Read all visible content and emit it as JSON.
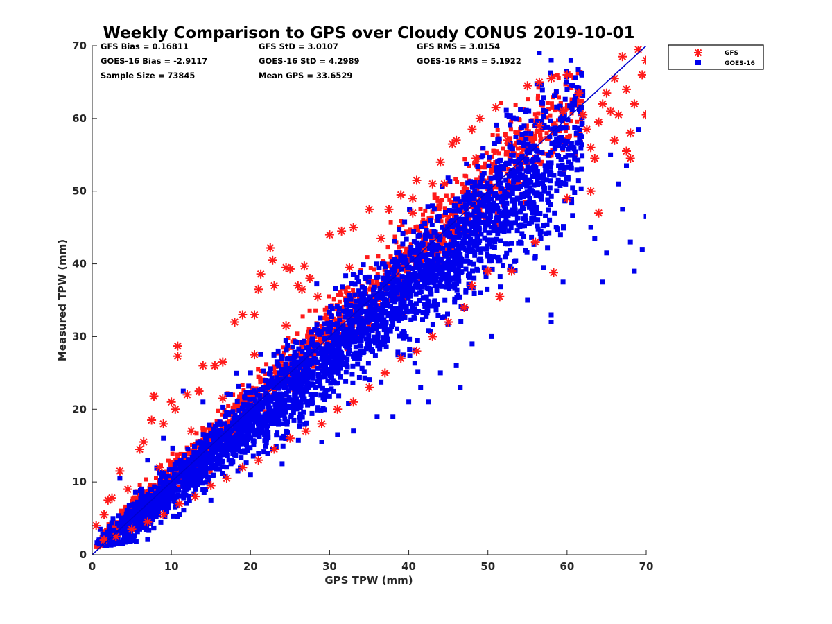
{
  "chart_data": {
    "type": "scatter",
    "title": "Weekly Comparison to GPS over Cloudy CONUS 2019-10-01",
    "xlabel": "GPS TPW (mm)",
    "ylabel": "Measured TPW (mm)",
    "xlim": [
      0,
      70
    ],
    "ylim": [
      0,
      70
    ],
    "xticks": [
      "0",
      "10",
      "20",
      "30",
      "40",
      "50",
      "60",
      "70"
    ],
    "yticks": [
      "0",
      "10",
      "20",
      "30",
      "40",
      "50",
      "60",
      "70"
    ],
    "grid": false,
    "legend_position": "outside top-right",
    "reference_line": {
      "x": [
        0,
        70
      ],
      "y": [
        0,
        70
      ],
      "color": "#0000cc"
    },
    "stats": [
      "GFS Bias = 0.16811",
      "GFS StD = 3.0107",
      "GFS RMS = 3.0154",
      "GOES-16 Bias = -2.9117",
      "GOES-16 StD = 4.2989",
      "GOES-16 RMS = 5.1922",
      "Sample Size = 73845",
      "Mean GPS = 33.6529"
    ],
    "series": [
      {
        "name": "GFS",
        "marker": "asterisk",
        "color": "#ff1a1a",
        "points": [
          [
            0.5,
            4.0
          ],
          [
            1.5,
            5.5
          ],
          [
            2.0,
            7.5
          ],
          [
            2.5,
            7.8
          ],
          [
            3.5,
            11.5
          ],
          [
            4.5,
            9.0
          ],
          [
            6.0,
            14.5
          ],
          [
            6.5,
            15.5
          ],
          [
            7.5,
            18.5
          ],
          [
            7.8,
            21.8
          ],
          [
            9.0,
            18.0
          ],
          [
            10.0,
            21.0
          ],
          [
            10.5,
            20.0
          ],
          [
            10.8,
            28.7
          ],
          [
            10.8,
            27.3
          ],
          [
            12.0,
            22.0
          ],
          [
            13.5,
            22.5
          ],
          [
            14.0,
            26.0
          ],
          [
            15.5,
            26.0
          ],
          [
            16.5,
            26.5
          ],
          [
            18.0,
            32.0
          ],
          [
            19.0,
            33.0
          ],
          [
            20.5,
            33.0
          ],
          [
            21.0,
            36.5
          ],
          [
            21.3,
            38.6
          ],
          [
            22.5,
            42.2
          ],
          [
            22.8,
            40.5
          ],
          [
            23.0,
            37.0
          ],
          [
            24.5,
            39.5
          ],
          [
            25.0,
            39.3
          ],
          [
            26.0,
            37.0
          ],
          [
            26.5,
            36.5
          ],
          [
            26.8,
            39.7
          ],
          [
            27.5,
            38.0
          ],
          [
            30.0,
            44.0
          ],
          [
            31.5,
            44.5
          ],
          [
            33.0,
            45.0
          ],
          [
            35.0,
            47.5
          ],
          [
            37.5,
            47.5
          ],
          [
            39.0,
            49.5
          ],
          [
            40.5,
            49.0
          ],
          [
            41.0,
            51.5
          ],
          [
            43.0,
            51.0
          ],
          [
            44.0,
            54.0
          ],
          [
            45.5,
            56.5
          ],
          [
            46.0,
            57.0
          ],
          [
            48.0,
            58.5
          ],
          [
            49.0,
            60.0
          ],
          [
            51.0,
            61.5
          ],
          [
            55.0,
            64.5
          ],
          [
            56.5,
            65.0
          ],
          [
            58.0,
            65.5
          ],
          [
            60.0,
            66.0
          ],
          [
            61.5,
            63.5
          ],
          [
            62.0,
            60.5
          ],
          [
            62.5,
            58.5
          ],
          [
            63.0,
            56.0
          ],
          [
            63.5,
            54.5
          ],
          [
            64.0,
            59.5
          ],
          [
            64.5,
            62.0
          ],
          [
            65.0,
            63.5
          ],
          [
            65.5,
            61.0
          ],
          [
            66.0,
            65.5
          ],
          [
            66.5,
            60.5
          ],
          [
            67.0,
            68.5
          ],
          [
            67.5,
            64.0
          ],
          [
            68.0,
            58.0
          ],
          [
            68.5,
            62.0
          ],
          [
            69.0,
            69.5
          ],
          [
            69.5,
            66.0
          ],
          [
            70.0,
            68.0
          ],
          [
            70.0,
            60.5
          ],
          [
            67.5,
            55.5
          ],
          [
            68.0,
            54.5
          ],
          [
            66.0,
            57.0
          ],
          [
            64.0,
            47.0
          ],
          [
            63.0,
            50.0
          ],
          [
            60.0,
            49.0
          ],
          [
            58.3,
            38.8
          ],
          [
            56.0,
            43.0
          ],
          [
            53.0,
            39.0
          ],
          [
            51.5,
            35.5
          ],
          [
            50.0,
            39.0
          ],
          [
            48.0,
            37.0
          ],
          [
            47.0,
            34.0
          ],
          [
            45.0,
            32.0
          ],
          [
            43.0,
            30.0
          ],
          [
            41.0,
            28.0
          ],
          [
            39.0,
            27.0
          ],
          [
            37.0,
            25.0
          ],
          [
            35.0,
            23.0
          ],
          [
            33.0,
            21.0
          ],
          [
            31.0,
            20.0
          ],
          [
            29.0,
            18.0
          ],
          [
            27.0,
            17.0
          ],
          [
            25.0,
            16.0
          ],
          [
            23.0,
            14.5
          ],
          [
            21.0,
            13.0
          ],
          [
            19.0,
            12.0
          ],
          [
            17.0,
            10.5
          ],
          [
            15.0,
            9.5
          ],
          [
            13.0,
            8.0
          ],
          [
            11.0,
            7.0
          ],
          [
            9.0,
            5.5
          ],
          [
            7.0,
            4.5
          ],
          [
            5.0,
            3.5
          ],
          [
            3.0,
            2.5
          ],
          [
            1.5,
            2.0
          ],
          [
            8.5,
            12.0
          ],
          [
            12.5,
            17.0
          ],
          [
            16.5,
            21.5
          ],
          [
            20.5,
            27.5
          ],
          [
            24.5,
            31.5
          ],
          [
            28.5,
            35.5
          ],
          [
            32.5,
            39.5
          ],
          [
            36.5,
            43.5
          ],
          [
            40.5,
            47.0
          ],
          [
            44.5,
            51.0
          ],
          [
            48.5,
            54.5
          ],
          [
            52.5,
            57.0
          ],
          [
            56.5,
            59.0
          ],
          [
            59.5,
            61.0
          ]
        ]
      },
      {
        "name": "GOES-16",
        "marker": "square",
        "color": "#0000ee",
        "points": [
          [
            56.5,
            69.0
          ],
          [
            58.0,
            68.0
          ],
          [
            60.0,
            64.0
          ],
          [
            63.0,
            45.0
          ],
          [
            63.5,
            43.5
          ],
          [
            64.5,
            37.5
          ],
          [
            65.0,
            41.5
          ],
          [
            66.5,
            51.0
          ],
          [
            67.0,
            47.5
          ],
          [
            68.0,
            43.0
          ],
          [
            69.5,
            42.0
          ],
          [
            70.0,
            46.5
          ],
          [
            68.5,
            39.0
          ],
          [
            65.5,
            55.0
          ],
          [
            69.0,
            58.5
          ],
          [
            67.5,
            53.5
          ],
          [
            58.0,
            33.0
          ],
          [
            58.0,
            32.0
          ],
          [
            57.0,
            39.5
          ],
          [
            59.5,
            37.5
          ],
          [
            56.0,
            41.0
          ],
          [
            55.0,
            35.0
          ],
          [
            50.5,
            30.0
          ],
          [
            48.0,
            29.0
          ],
          [
            46.0,
            26.0
          ],
          [
            44.0,
            25.0
          ],
          [
            41.5,
            23.0
          ],
          [
            40.0,
            21.0
          ],
          [
            42.5,
            21.0
          ],
          [
            46.5,
            23.0
          ],
          [
            38.0,
            19.0
          ],
          [
            36.0,
            19.0
          ],
          [
            33.0,
            17.0
          ],
          [
            31.0,
            16.5
          ],
          [
            29.0,
            15.5
          ],
          [
            24.0,
            12.5
          ],
          [
            20.0,
            11.0
          ],
          [
            15.0,
            7.5
          ],
          [
            11.0,
            5.5
          ],
          [
            6.0,
            3.5
          ],
          [
            3.0,
            2.0
          ],
          [
            1.0,
            3.5
          ],
          [
            3.5,
            10.5
          ],
          [
            7.0,
            13.0
          ],
          [
            9.0,
            16.0
          ],
          [
            11.5,
            22.5
          ],
          [
            14.0,
            21.0
          ],
          [
            17.0,
            22.0
          ],
          [
            20.0,
            25.0
          ],
          [
            23.5,
            28.0
          ]
        ]
      }
    ]
  }
}
